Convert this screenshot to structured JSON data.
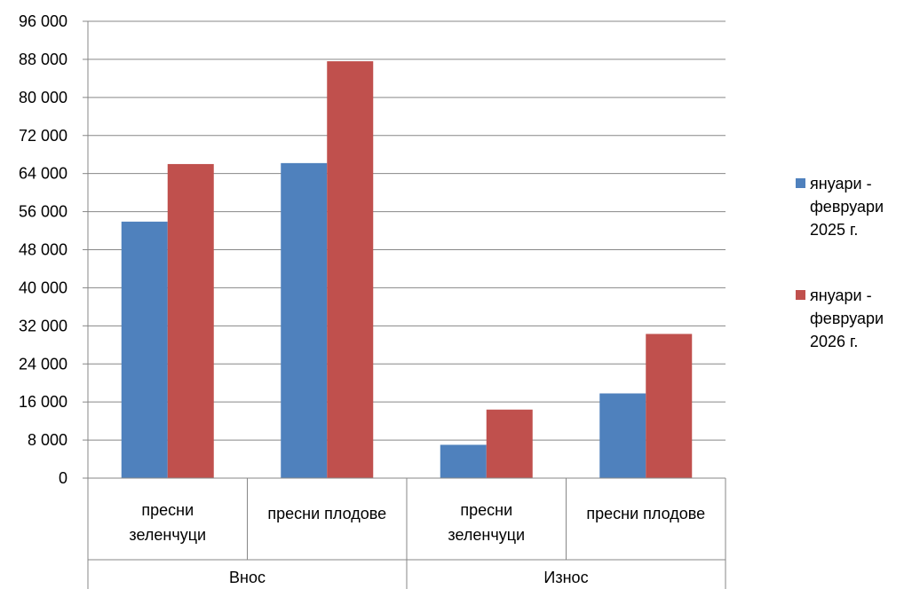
{
  "chart_data": {
    "type": "bar",
    "groups": [
      {
        "label": "Внос",
        "categories": [
          [
            "пресни",
            "зеленчуци"
          ],
          [
            "пресни плодове"
          ]
        ]
      },
      {
        "label": "Износ",
        "categories": [
          [
            "пресни",
            "зеленчуци"
          ],
          [
            "пресни плодове"
          ]
        ]
      }
    ],
    "categories": [
      "Внос: пресни зеленчуци",
      "Внос: пресни плодове",
      "Износ: пресни зеленчуци",
      "Износ: пресни плодове"
    ],
    "series": [
      {
        "name": "януари - февруари 2025 г.",
        "name_lines": [
          "януари -",
          "февруари",
          "2025 г."
        ],
        "color": "#4F81BD",
        "values": [
          53900,
          66200,
          7000,
          17800
        ]
      },
      {
        "name": "януари - февруари 2026 г.",
        "name_lines": [
          "януари -",
          "февруари",
          "2026 г."
        ],
        "color": "#C0504D",
        "values": [
          66000,
          87600,
          14400,
          30300
        ]
      }
    ],
    "ylim": [
      0,
      96000
    ],
    "yticks": [
      0,
      8000,
      16000,
      24000,
      32000,
      40000,
      48000,
      56000,
      64000,
      72000,
      80000,
      88000,
      96000
    ],
    "ytick_labels": [
      "0",
      "8 000",
      "16 000",
      "24 000",
      "32 000",
      "40 000",
      "48 000",
      "56 000",
      "64 000",
      "72 000",
      "80 000",
      "88 000",
      "96 000"
    ],
    "grid": true,
    "legend_position": "right",
    "title": "",
    "xlabel": "",
    "ylabel": ""
  }
}
